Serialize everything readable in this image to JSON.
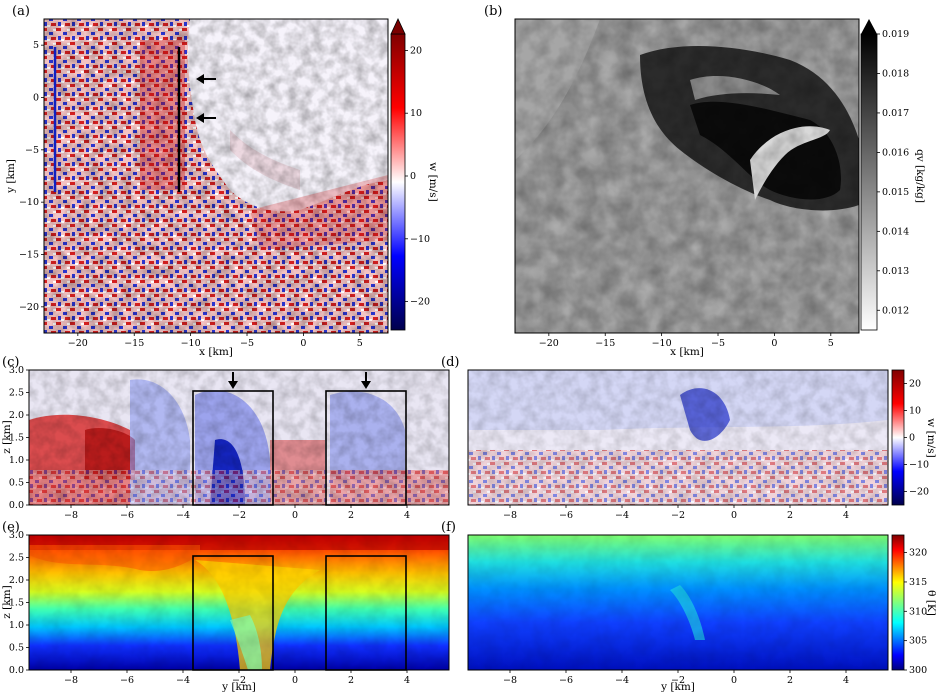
{
  "chart_data": [
    {
      "panel": "(a)",
      "type": "heatmap",
      "xlabel": "x [km]",
      "ylabel": "y [km]",
      "xticks": [
        "−20",
        "−15",
        "−10",
        "−5",
        "0",
        "5"
      ],
      "yticks": [
        "5",
        "0",
        "−5",
        "−10",
        "−15",
        "−20"
      ],
      "xlim": [
        -23,
        7.5
      ],
      "ylim": [
        -22.5,
        7.5
      ],
      "colorbar": {
        "label": "w [m/s]",
        "ticks": [
          "20",
          "10",
          "0",
          "−10",
          "−20"
        ],
        "range": [
          -25,
          25
        ],
        "colormap": "seismic"
      },
      "annotations": {
        "vertical_lines_x": [
          -22.5,
          -10.5
        ],
        "arrows_y": [
          2,
          -1.8
        ]
      }
    },
    {
      "panel": "(b)",
      "type": "heatmap",
      "xlabel": "x [km]",
      "xticks": [
        "−20",
        "−15",
        "−10",
        "−5",
        "0",
        "5"
      ],
      "xlim": [
        -23,
        7.5
      ],
      "colorbar": {
        "label": "qv [kg/kg]",
        "ticks": [
          "0.019",
          "0.018",
          "0.017",
          "0.016",
          "0.015",
          "0.014",
          "0.013",
          "0.012"
        ],
        "range": [
          0.0115,
          0.019
        ],
        "colormap": "gray_r"
      }
    },
    {
      "panel": "(c)",
      "type": "heatmap",
      "ylabel": "z [km]",
      "xticks": [
        "−8",
        "−6",
        "−4",
        "−2",
        "0",
        "2",
        "4"
      ],
      "yticks": [
        "3.0",
        "2.5",
        "2.0",
        "1.5",
        "1.0",
        "0.5",
        "0.0"
      ],
      "xlim": [
        -9.5,
        5.5
      ],
      "ylim": [
        0,
        3
      ],
      "annotations": {
        "boxes_x": [
          [
            -3.7,
            -0.8
          ],
          [
            1.1,
            4.0
          ]
        ],
        "box_top_z": 2.55,
        "arrows_x": [
          -2.2,
          2.6
        ]
      }
    },
    {
      "panel": "(d)",
      "type": "heatmap",
      "xticks": [
        "−8",
        "−6",
        "−4",
        "−2",
        "0",
        "2",
        "4"
      ],
      "xlim": [
        -9.5,
        5.5
      ],
      "colorbar": {
        "label": "w [m/s]",
        "ticks": [
          "20",
          "10",
          "0",
          "−10",
          "−20"
        ],
        "range": [
          -25,
          25
        ],
        "colormap": "seismic"
      }
    },
    {
      "panel": "(e)",
      "type": "heatmap",
      "xlabel": "y [km]",
      "ylabel": "z [km]",
      "xticks": [
        "−8",
        "−6",
        "−4",
        "−2",
        "0",
        "2",
        "4"
      ],
      "yticks": [
        "3.0",
        "2.5",
        "2.0",
        "1.5",
        "1.0",
        "0.5",
        "0.0"
      ],
      "xlim": [
        -9.5,
        5.5
      ],
      "ylim": [
        0,
        3
      ],
      "annotations": {
        "boxes_x": [
          [
            -3.7,
            -0.8
          ],
          [
            1.1,
            4.0
          ]
        ],
        "box_top_z": 2.55
      }
    },
    {
      "panel": "(f)",
      "type": "heatmap",
      "xlabel": "y [km]",
      "xticks": [
        "−8",
        "−6",
        "−4",
        "−2",
        "0",
        "2",
        "4"
      ],
      "xlim": [
        -9.5,
        5.5
      ],
      "colorbar": {
        "label": "θ [K]",
        "ticks": [
          "320",
          "315",
          "310",
          "305",
          "300"
        ],
        "range": [
          300,
          323
        ],
        "colormap": "jet"
      }
    }
  ]
}
